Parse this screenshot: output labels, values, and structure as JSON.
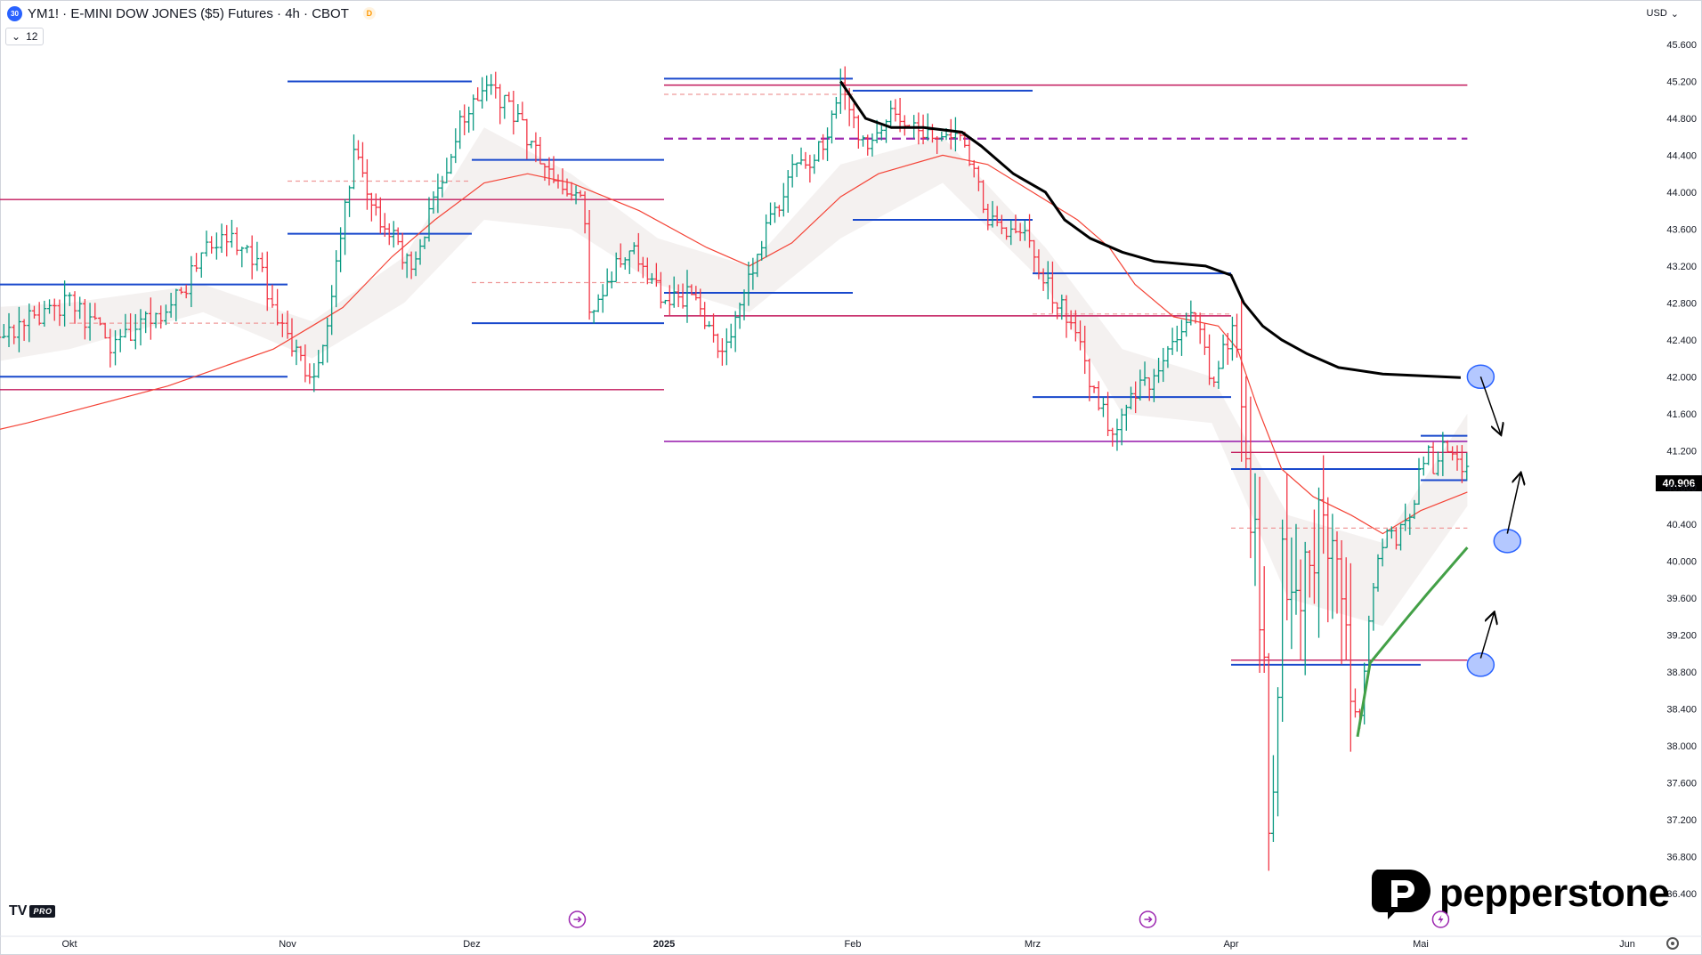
{
  "header": {
    "badge": "30",
    "title": "YM1! · E-MINI DOW JONES ($5) Futures · 4h · CBOT",
    "delayed_badge": "D",
    "interval_value": "12",
    "currency": "USD"
  },
  "branding": {
    "tv_mark": "TV",
    "tv_plan": "PRO",
    "broker": "pepperstone"
  },
  "colors": {
    "up": "#089981",
    "down": "#f23645",
    "blue_level": "#1848cc",
    "magenta_level": "#c2185b",
    "purple_level": "#9c27b0",
    "salmon_dashed": "#ef9a9a",
    "ema_red": "#f44336",
    "vwap_black": "#000000",
    "vwap_green": "#43a047",
    "cloud": "#d7ccc8",
    "marker": "#2962ff"
  },
  "chart_data": {
    "type": "ohlc",
    "title": "YM1! · E-MINI DOW JONES ($5) Futures · 4h · CBOT",
    "y_ticks": [
      "45.600",
      "45.200",
      "44.800",
      "44.400",
      "44.000",
      "43.600",
      "43.200",
      "42.800",
      "42.400",
      "42.000",
      "41.600",
      "41.200",
      "40.800",
      "40.400",
      "40.000",
      "39.600",
      "39.200",
      "38.800",
      "38.400",
      "38.000",
      "37.600",
      "37.200",
      "36.800",
      "36.400"
    ],
    "ylim": [
      36200,
      45800
    ],
    "x_labels": [
      {
        "t": "2024-10-01",
        "text": "Okt"
      },
      {
        "t": "2024-11-01",
        "text": "Nov"
      },
      {
        "t": "2024-12-01",
        "text": "Dez"
      },
      {
        "t": "2025-01-01",
        "text": "2025"
      },
      {
        "t": "2025-02-01",
        "text": "Feb"
      },
      {
        "t": "2025-03-01",
        "text": "Mrz"
      },
      {
        "t": "2025-04-01",
        "text": "Apr"
      },
      {
        "t": "2025-05-01",
        "text": "Mai"
      },
      {
        "t": "2025-06-01",
        "text": "Jun"
      }
    ],
    "last_price": "40.906",
    "price_path": [
      [
        "2024-09-08",
        42400
      ],
      [
        "2024-09-15",
        42600
      ],
      [
        "2024-09-22",
        42500
      ],
      [
        "2024-10-01",
        42800
      ],
      [
        "2024-10-07",
        42350
      ],
      [
        "2024-10-12",
        42600
      ],
      [
        "2024-10-17",
        42900
      ],
      [
        "2024-10-20",
        43350
      ],
      [
        "2024-10-24",
        43500
      ],
      [
        "2024-10-28",
        43200
      ],
      [
        "2024-10-30",
        42700
      ],
      [
        "2024-11-02",
        42300
      ],
      [
        "2024-11-05",
        41900
      ],
      [
        "2024-11-08",
        42700
      ],
      [
        "2024-11-10",
        43700
      ],
      [
        "2024-11-12",
        44500
      ],
      [
        "2024-11-15",
        43800
      ],
      [
        "2024-11-18",
        43500
      ],
      [
        "2024-11-21",
        43200
      ],
      [
        "2024-11-24",
        43700
      ],
      [
        "2024-11-27",
        44300
      ],
      [
        "2024-11-30",
        44900
      ],
      [
        "2024-12-03",
        45100
      ],
      [
        "2024-12-06",
        45000
      ],
      [
        "2024-12-10",
        44600
      ],
      [
        "2024-12-13",
        44200
      ],
      [
        "2024-12-16",
        44000
      ],
      [
        "2024-12-19",
        43900
      ],
      [
        "2024-12-20",
        42700
      ],
      [
        "2024-12-23",
        43100
      ],
      [
        "2024-12-27",
        43400
      ],
      [
        "2024-12-31",
        42900
      ],
      [
        "2025-01-02",
        42800
      ],
      [
        "2025-01-06",
        42900
      ],
      [
        "2025-01-10",
        42200
      ],
      [
        "2025-01-13",
        42600
      ],
      [
        "2025-01-15",
        43100
      ],
      [
        "2025-01-17",
        43500
      ],
      [
        "2025-01-22",
        44200
      ],
      [
        "2025-01-27",
        44500
      ],
      [
        "2025-01-30",
        45100
      ],
      [
        "2025-02-01",
        44800
      ],
      [
        "2025-02-03",
        44400
      ],
      [
        "2025-02-07",
        44800
      ],
      [
        "2025-02-11",
        44700
      ],
      [
        "2025-02-14",
        44600
      ],
      [
        "2025-02-17",
        44700
      ],
      [
        "2025-02-20",
        44200
      ],
      [
        "2025-02-22",
        43700
      ],
      [
        "2025-02-26",
        43600
      ],
      [
        "2025-03-01",
        43400
      ],
      [
        "2025-03-03",
        43000
      ],
      [
        "2025-03-06",
        42700
      ],
      [
        "2025-03-09",
        42200
      ],
      [
        "2025-03-11",
        41700
      ],
      [
        "2025-03-14",
        41400
      ],
      [
        "2025-03-17",
        41800
      ],
      [
        "2025-03-20",
        42000
      ],
      [
        "2025-03-24",
        42500
      ],
      [
        "2025-03-26",
        42700
      ],
      [
        "2025-03-29",
        42000
      ],
      [
        "2025-04-01",
        42500
      ],
      [
        "2025-04-02",
        42300
      ],
      [
        "2025-04-04",
        40800
      ],
      [
        "2025-04-06",
        39200
      ],
      [
        "2025-04-07",
        37300
      ],
      [
        "2025-04-08",
        38000
      ],
      [
        "2025-04-09",
        40000
      ],
      [
        "2025-04-10",
        39300
      ],
      [
        "2025-04-12",
        39700
      ],
      [
        "2025-04-15",
        40400
      ],
      [
        "2025-04-18",
        39600
      ],
      [
        "2025-04-21",
        38100
      ],
      [
        "2025-04-23",
        39500
      ],
      [
        "2025-04-25",
        40200
      ],
      [
        "2025-04-28",
        40300
      ],
      [
        "2025-04-30",
        40700
      ],
      [
        "2025-05-02",
        41300
      ],
      [
        "2025-05-03",
        41000
      ],
      [
        "2025-05-05",
        41300
      ],
      [
        "2025-05-08",
        40906
      ]
    ],
    "ema_path": [
      [
        "2024-09-08",
        41200
      ],
      [
        "2024-09-25",
        41500
      ],
      [
        "2024-10-15",
        41900
      ],
      [
        "2024-10-30",
        42300
      ],
      [
        "2024-11-05",
        42550
      ],
      [
        "2024-11-10",
        42750
      ],
      [
        "2024-11-18",
        43300
      ],
      [
        "2024-11-25",
        43700
      ],
      [
        "2024-12-03",
        44100
      ],
      [
        "2024-12-10",
        44200
      ],
      [
        "2024-12-17",
        44100
      ],
      [
        "2024-12-28",
        43800
      ],
      [
        "2025-01-08",
        43400
      ],
      [
        "2025-01-15",
        43200
      ],
      [
        "2025-01-22",
        43450
      ],
      [
        "2025-01-30",
        43950
      ],
      [
        "2025-02-05",
        44200
      ],
      [
        "2025-02-15",
        44400
      ],
      [
        "2025-02-22",
        44300
      ],
      [
        "2025-03-01",
        44000
      ],
      [
        "2025-03-08",
        43700
      ],
      [
        "2025-03-13",
        43400
      ],
      [
        "2025-03-17",
        43000
      ],
      [
        "2025-03-23",
        42650
      ],
      [
        "2025-03-30",
        42550
      ],
      [
        "2025-04-02",
        42300
      ],
      [
        "2025-04-05",
        41700
      ],
      [
        "2025-04-09",
        41000
      ],
      [
        "2025-04-14",
        40700
      ],
      [
        "2025-04-20",
        40500
      ],
      [
        "2025-04-25",
        40300
      ],
      [
        "2025-05-01",
        40550
      ],
      [
        "2025-05-08",
        40750
      ]
    ],
    "cloud_upper": [
      [
        "2024-09-08",
        42700
      ],
      [
        "2024-10-01",
        42800
      ],
      [
        "2024-10-20",
        43000
      ],
      [
        "2024-11-05",
        42600
      ],
      [
        "2024-11-20",
        43300
      ],
      [
        "2024-12-03",
        44700
      ],
      [
        "2024-12-17",
        44200
      ],
      [
        "2024-12-31",
        43500
      ],
      [
        "2025-01-15",
        43200
      ],
      [
        "2025-01-30",
        44300
      ],
      [
        "2025-02-15",
        44600
      ],
      [
        "2025-03-03",
        43400
      ],
      [
        "2025-03-15",
        42300
      ],
      [
        "2025-03-29",
        42000
      ],
      [
        "2025-04-10",
        40500
      ],
      [
        "2025-04-25",
        40200
      ],
      [
        "2025-05-08",
        41600
      ]
    ],
    "cloud_lower": [
      [
        "2024-09-08",
        42000
      ],
      [
        "2024-10-01",
        42300
      ],
      [
        "2024-10-20",
        42700
      ],
      [
        "2024-11-05",
        42200
      ],
      [
        "2024-11-20",
        42800
      ],
      [
        "2024-12-03",
        43700
      ],
      [
        "2024-12-17",
        43600
      ],
      [
        "2024-12-31",
        43000
      ],
      [
        "2025-01-15",
        42700
      ],
      [
        "2025-01-30",
        43500
      ],
      [
        "2025-02-15",
        44100
      ],
      [
        "2025-03-03",
        43000
      ],
      [
        "2025-03-15",
        41600
      ],
      [
        "2025-03-29",
        41500
      ],
      [
        "2025-04-10",
        39600
      ],
      [
        "2025-04-25",
        39300
      ],
      [
        "2025-05-08",
        40600
      ]
    ],
    "vwap_black": [
      [
        "2025-01-30",
        45200
      ],
      [
        "2025-02-03",
        44800
      ],
      [
        "2025-02-07",
        44700
      ],
      [
        "2025-02-12",
        44700
      ],
      [
        "2025-02-18",
        44650
      ],
      [
        "2025-02-21",
        44500
      ],
      [
        "2025-02-26",
        44200
      ],
      [
        "2025-03-03",
        44000
      ],
      [
        "2025-03-06",
        43700
      ],
      [
        "2025-03-10",
        43500
      ],
      [
        "2025-03-15",
        43350
      ],
      [
        "2025-03-20",
        43250
      ],
      [
        "2025-03-28",
        43200
      ],
      [
        "2025-04-01",
        43100
      ],
      [
        "2025-04-03",
        42800
      ],
      [
        "2025-04-06",
        42550
      ],
      [
        "2025-04-09",
        42400
      ],
      [
        "2025-04-13",
        42250
      ],
      [
        "2025-04-18",
        42100
      ],
      [
        "2025-04-25",
        42030
      ],
      [
        "2025-05-07",
        41990
      ]
    ],
    "vwap_green": [
      [
        "2025-04-21",
        38100
      ],
      [
        "2025-04-22",
        38500
      ],
      [
        "2025-04-23",
        38900
      ],
      [
        "2025-04-26",
        39150
      ],
      [
        "2025-04-29",
        39400
      ],
      [
        "2025-05-02",
        39650
      ],
      [
        "2025-05-05",
        39900
      ],
      [
        "2025-05-08",
        40150
      ]
    ],
    "levels": [
      {
        "price": 45200,
        "t1": "2024-11-01",
        "t2": "2024-12-01",
        "kind": "blue"
      },
      {
        "price": 44350,
        "t1": "2024-12-01",
        "t2": "2025-01-01",
        "kind": "blue"
      },
      {
        "price": 43550,
        "t1": "2024-11-01",
        "t2": "2024-12-01",
        "kind": "blue"
      },
      {
        "price": 43000,
        "t1": "2024-09-08",
        "t2": "2024-11-01",
        "kind": "blue"
      },
      {
        "price": 42580,
        "t1": "2024-12-01",
        "t2": "2025-01-01",
        "kind": "blue"
      },
      {
        "price": 42000,
        "t1": "2024-09-08",
        "t2": "2024-11-01",
        "kind": "blue"
      },
      {
        "price": 45230,
        "t1": "2025-01-01",
        "t2": "2025-02-01",
        "kind": "blue"
      },
      {
        "price": 45100,
        "t1": "2025-02-01",
        "t2": "2025-03-01",
        "kind": "blue"
      },
      {
        "price": 42910,
        "t1": "2025-01-01",
        "t2": "2025-02-01",
        "kind": "blue"
      },
      {
        "price": 43700,
        "t1": "2025-02-01",
        "t2": "2025-03-01",
        "kind": "blue"
      },
      {
        "price": 43120,
        "t1": "2025-03-01",
        "t2": "2025-04-01",
        "kind": "blue"
      },
      {
        "price": 41780,
        "t1": "2025-03-01",
        "t2": "2025-04-01",
        "kind": "blue"
      },
      {
        "price": 41000,
        "t1": "2025-04-01",
        "t2": "2025-05-01",
        "kind": "blue"
      },
      {
        "price": 38880,
        "t1": "2025-04-01",
        "t2": "2025-05-01",
        "kind": "blue"
      },
      {
        "price": 41360,
        "t1": "2025-05-01",
        "t2": "2025-05-08",
        "kind": "blue"
      },
      {
        "price": 40880,
        "t1": "2025-05-01",
        "t2": "2025-05-08",
        "kind": "blue"
      },
      {
        "price": 43920,
        "t1": "2024-09-08",
        "t2": "2025-01-01",
        "kind": "magenta"
      },
      {
        "price": 41860,
        "t1": "2024-09-08",
        "t2": "2025-01-01",
        "kind": "magenta"
      },
      {
        "price": 45160,
        "t1": "2025-01-01",
        "t2": "2025-05-08",
        "kind": "magenta"
      },
      {
        "price": 42660,
        "t1": "2025-01-01",
        "t2": "2025-04-01",
        "kind": "magenta"
      },
      {
        "price": 41180,
        "t1": "2025-04-01",
        "t2": "2025-05-08",
        "kind": "magenta"
      },
      {
        "price": 38930,
        "t1": "2025-04-01",
        "t2": "2025-05-08",
        "kind": "magenta"
      },
      {
        "price": 41300,
        "t1": "2025-01-01",
        "t2": "2025-05-08",
        "kind": "purple"
      },
      {
        "price": 44580,
        "t1": "2025-01-01",
        "t2": "2025-05-08",
        "kind": "purple_dashed"
      },
      {
        "price": 44120,
        "t1": "2024-11-01",
        "t2": "2024-12-01",
        "kind": "salmon_dashed"
      },
      {
        "price": 42580,
        "t1": "2024-10-01",
        "t2": "2024-11-01",
        "kind": "salmon_dashed"
      },
      {
        "price": 43020,
        "t1": "2024-12-01",
        "t2": "2025-01-01",
        "kind": "salmon_dashed"
      },
      {
        "price": 45060,
        "t1": "2025-01-01",
        "t2": "2025-02-01",
        "kind": "salmon_dashed"
      },
      {
        "price": 42680,
        "t1": "2025-03-01",
        "t2": "2025-04-01",
        "kind": "salmon_dashed"
      },
      {
        "price": 40360,
        "t1": "2025-04-01",
        "t2": "2025-05-08",
        "kind": "salmon_dashed"
      }
    ],
    "annotations": [
      {
        "type": "circle",
        "t": "2025-05-10",
        "price": 42000
      },
      {
        "type": "circle",
        "t": "2025-05-14",
        "price": 40220
      },
      {
        "type": "circle",
        "t": "2025-05-10",
        "price": 38880
      },
      {
        "type": "arrow",
        "from": [
          "2025-05-10",
          42000
        ],
        "to": [
          "2025-05-13",
          41380
        ],
        "tip": [
          "2025-05-13",
          41400
        ]
      },
      {
        "type": "arrow",
        "from": [
          "2025-05-14",
          40300
        ],
        "to": [
          "2025-05-16",
          40950
        ]
      },
      {
        "type": "arrow",
        "from": [
          "2025-05-10",
          38950
        ],
        "to": [
          "2025-05-12",
          39440
        ]
      }
    ],
    "event_markers": [
      {
        "t": "2024-12-18",
        "icon": "arrow-right-circle-icon"
      },
      {
        "t": "2025-03-19",
        "icon": "arrow-right-circle-icon"
      },
      {
        "t": "2025-05-04",
        "icon": "lightning-circle-icon"
      }
    ]
  }
}
